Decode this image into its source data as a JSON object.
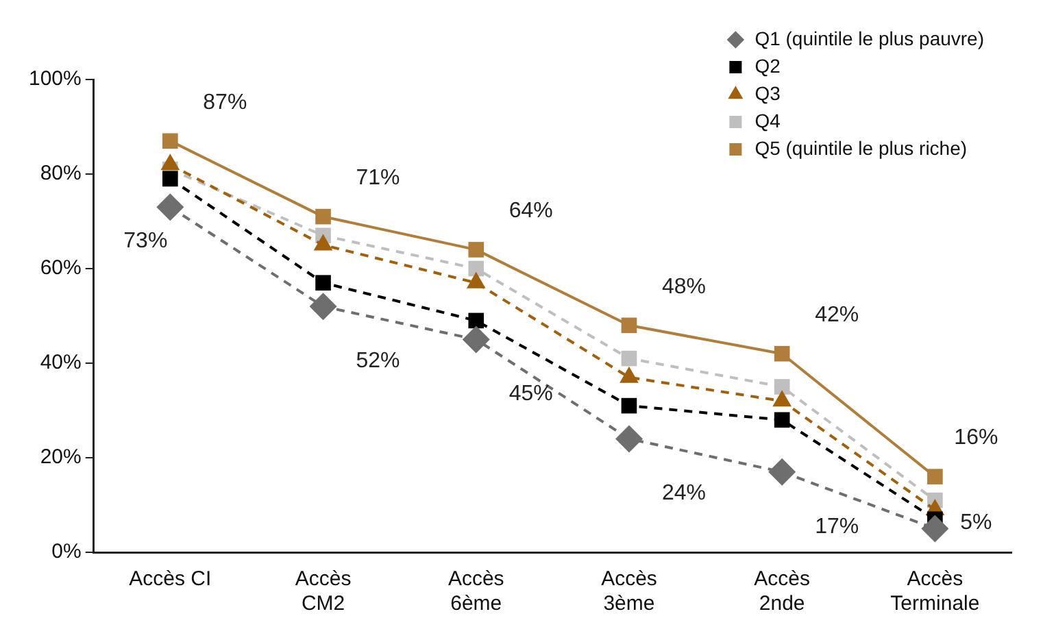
{
  "chart_data": {
    "type": "line",
    "categories": [
      "Accès CI",
      "Accès\nCM2",
      "Accès\n6ème",
      "Accès\n3ème",
      "Accès\n2nde",
      "Accès\nTerminale"
    ],
    "ylim": [
      0,
      100
    ],
    "yticks": [
      {
        "value": 0,
        "label": "0%"
      },
      {
        "value": 20,
        "label": "20%"
      },
      {
        "value": 40,
        "label": "40%"
      },
      {
        "value": 60,
        "label": "60%"
      },
      {
        "value": 80,
        "label": "80%"
      },
      {
        "value": 100,
        "label": "100%"
      }
    ],
    "grid": false,
    "legend": "top right",
    "series": [
      {
        "name": "Q1 (quintile le plus pauvre)",
        "color": "#6e6e6e",
        "marker": "diamond",
        "line_style": "dashed",
        "values": [
          73,
          52,
          45,
          24,
          17,
          5
        ],
        "value_labels": [
          "73%",
          "52%",
          "45%",
          "24%",
          "17%",
          "5%"
        ]
      },
      {
        "name": "Q2",
        "color": "#000000",
        "marker": "square",
        "line_style": "dashed",
        "values": [
          79,
          57,
          49,
          31,
          28,
          7
        ]
      },
      {
        "name": "Q3",
        "color": "#a0600c",
        "marker": "triangle",
        "line_style": "dashed",
        "values": [
          82,
          65,
          57,
          37,
          32,
          9
        ]
      },
      {
        "name": "Q4",
        "color": "#bfbfbf",
        "marker": "square",
        "line_style": "dashed",
        "values": [
          81,
          67,
          60,
          41,
          35,
          11
        ]
      },
      {
        "name": "Q5 (quintile le plus riche)",
        "color": "#b07e3a",
        "marker": "square",
        "line_style": "solid",
        "values": [
          87,
          71,
          64,
          48,
          42,
          16
        ],
        "value_labels": [
          "87%",
          "71%",
          "64%",
          "48%",
          "42%",
          "16%"
        ]
      }
    ]
  }
}
